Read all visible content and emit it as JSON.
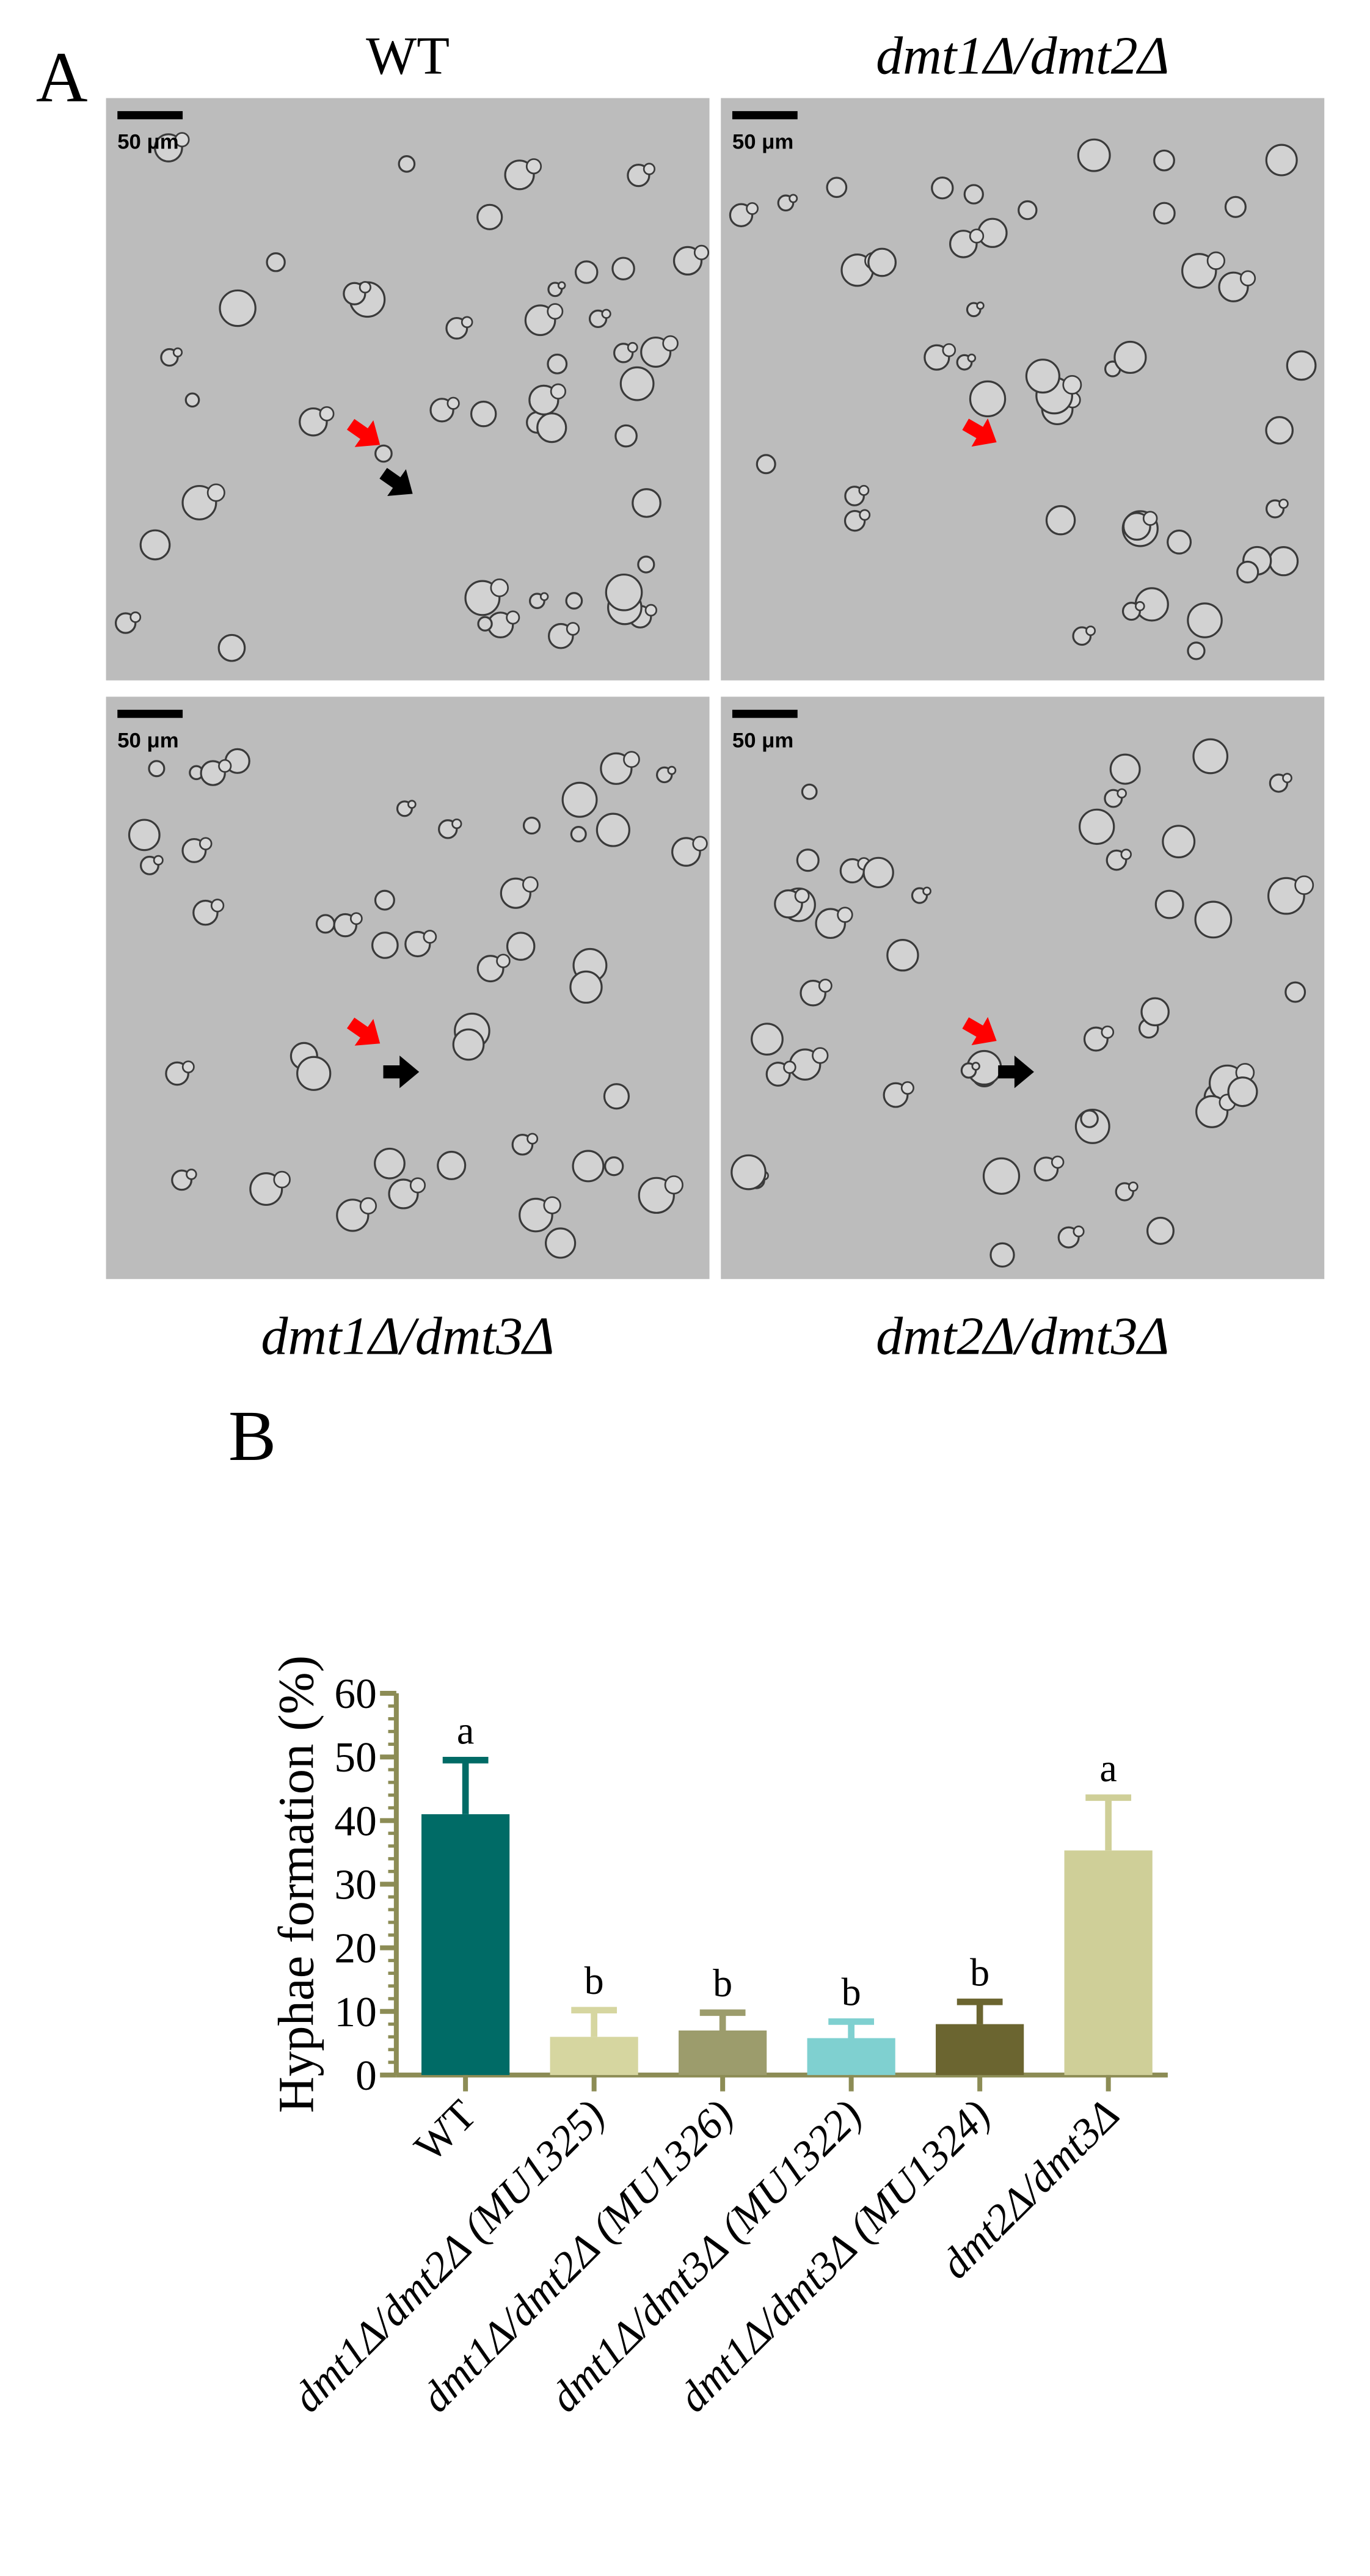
{
  "panel_a": {
    "label": "A",
    "images": [
      {
        "title": "WT",
        "scale_bar": "50 μm"
      },
      {
        "title": "dmt1Δ/dmt2Δ",
        "scale_bar": "50 μm"
      },
      {
        "title": "dmt1Δ/dmt3Δ",
        "scale_bar": "50 μm"
      },
      {
        "title": "dmt2Δ/dmt3Δ",
        "scale_bar": "50 μm"
      }
    ]
  },
  "panel_b": {
    "label": "B"
  },
  "chart_data": {
    "type": "bar",
    "y_label": "Hyphae formation (%)",
    "categories": [
      "WT",
      "dmt1Δ/dmt2Δ (MU1325)",
      "dmt1Δ/dmt2Δ (MU1326)",
      "dmt1Δ/dmt3Δ (MU1322)",
      "dmt1Δ/dmt3Δ (MU1324)",
      "dmt2Δ/dmt3Δ"
    ],
    "values": [
      41,
      6,
      7,
      5.8,
      8,
      35.3
    ],
    "errors": [
      8.5,
      4.2,
      2.8,
      2.6,
      3.5,
      8.3
    ],
    "annotations": [
      "a",
      "b",
      "b",
      "b",
      "b",
      "a"
    ],
    "colors": [
      "#006b66",
      "#d6d6a0",
      "#9c9c6c",
      "#7fd0d0",
      "#6b6530",
      "#cfcf98"
    ],
    "ylim": [
      0,
      60
    ],
    "yticks": [
      0,
      10,
      20,
      30,
      40,
      50,
      60
    ]
  }
}
